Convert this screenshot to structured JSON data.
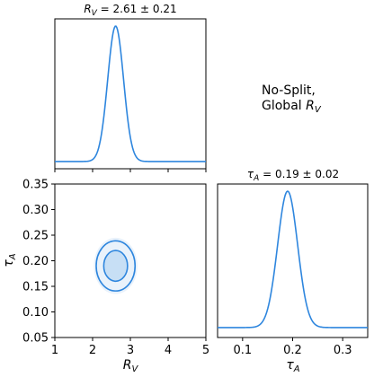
{
  "annotation": {
    "line1": "No-Split,",
    "line2_prefix": "Global ",
    "line2_symbol": "R",
    "line2_sub": "V"
  },
  "chart_data": [
    {
      "panel": "marginal-Rv",
      "type": "line",
      "title": {
        "symbol": "R",
        "sub": "V",
        "stat": " = 2.61 ± 0.21"
      },
      "xlim": [
        1,
        5
      ],
      "peak": {
        "x": 2.61,
        "sigma": 0.21
      },
      "baseline": 0.02,
      "series": [
        {
          "x": [
            1.0,
            2.0,
            2.2,
            2.4,
            2.5,
            2.61,
            2.7,
            2.8,
            3.0,
            3.2,
            5.0
          ],
          "values": [
            0.02,
            0.02,
            0.13,
            0.66,
            0.92,
            1.0,
            0.94,
            0.76,
            0.22,
            0.04,
            0.02
          ]
        }
      ]
    },
    {
      "panel": "joint-Rv-tauA",
      "type": "contour",
      "xlabel": {
        "symbol": "R",
        "sub": "V"
      },
      "ylabel": {
        "symbol": "τ",
        "sub": "A"
      },
      "xlim": [
        1,
        5
      ],
      "ylim": [
        0.05,
        0.35
      ],
      "xticks": [
        "1",
        "2",
        "3",
        "4",
        "5"
      ],
      "yticks": [
        "0.05",
        "0.10",
        "0.15",
        "0.20",
        "0.25",
        "0.30",
        "0.35"
      ],
      "center": {
        "x": 2.61,
        "y": 0.19
      },
      "sigma": {
        "x": 0.21,
        "y": 0.02
      },
      "levels": [
        "1-sigma",
        "2-sigma"
      ]
    },
    {
      "panel": "marginal-tauA",
      "type": "line",
      "title": {
        "symbol": "τ",
        "sub": "A",
        "stat": " = 0.19 ± 0.02"
      },
      "xlabel": {
        "symbol": "τ",
        "sub": "A"
      },
      "xlim": [
        0.05,
        0.35
      ],
      "xticks": [
        "0.1",
        "0.2",
        "0.3"
      ],
      "peak": {
        "x": 0.19,
        "sigma": 0.02
      },
      "baseline": 0.02,
      "series": [
        {
          "x": [
            0.05,
            0.12,
            0.15,
            0.17,
            0.19,
            0.21,
            0.23,
            0.26,
            0.35
          ],
          "values": [
            0.02,
            0.06,
            0.35,
            0.78,
            1.0,
            0.78,
            0.35,
            0.06,
            0.02
          ]
        }
      ]
    }
  ],
  "colors": {
    "line": "#2e86de",
    "fill_inner": "#c7dff5",
    "fill_outer": "#e9f2fb",
    "frame": "#000000"
  }
}
